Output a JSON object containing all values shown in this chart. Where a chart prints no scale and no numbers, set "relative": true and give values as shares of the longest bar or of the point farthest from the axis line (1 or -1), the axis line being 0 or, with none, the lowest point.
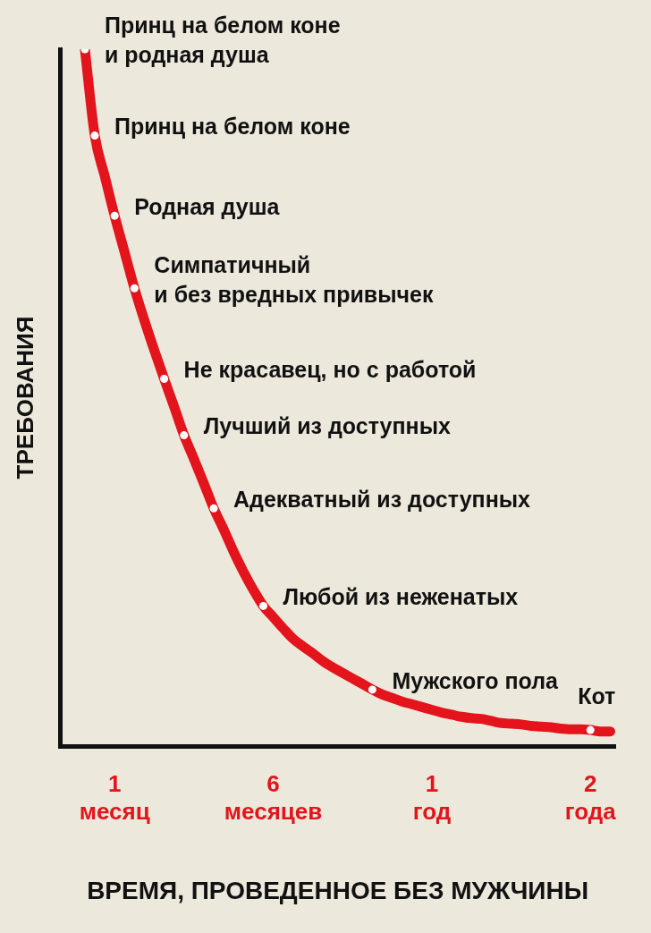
{
  "chart_data": {
    "type": "line",
    "xlabel": "ВРЕМЯ, ПРОВЕДЕННОЕ БЕЗ МУЖЧИНЫ",
    "ylabel": "ТРЕБОВАНИЯ",
    "relative": true,
    "grid": false,
    "legend": false,
    "categories": [
      null,
      null,
      null,
      null,
      null,
      "1 месяц",
      null,
      null,
      null,
      null,
      null,
      null,
      null,
      null,
      null,
      null,
      null,
      null,
      null,
      null,
      null,
      "6 месяцев",
      null,
      null,
      null,
      null,
      null,
      null,
      null,
      null,
      null,
      null,
      null,
      null,
      null,
      null,
      null,
      "1 год",
      null,
      null,
      null,
      null,
      null,
      null,
      null,
      null,
      null,
      null,
      null,
      null,
      null,
      null,
      null,
      "2 года",
      null,
      null
    ],
    "series": [
      {
        "color": "#e3141b",
        "marker": "none",
        "values": [
          null,
          null,
          1.0,
          0.876,
          0.818,
          0.761,
          0.709,
          0.657,
          0.611,
          0.568,
          0.527,
          0.487,
          0.446,
          0.412,
          0.377,
          0.341,
          0.311,
          0.279,
          0.25,
          0.224,
          0.201,
          0.185,
          0.169,
          0.154,
          0.143,
          0.133,
          0.122,
          0.113,
          0.105,
          0.097,
          0.089,
          0.081,
          0.074,
          0.069,
          0.064,
          0.06,
          0.056,
          0.052,
          0.048,
          0.045,
          0.042,
          0.04,
          0.039,
          0.036,
          0.033,
          0.032,
          0.031,
          0.029,
          0.028,
          0.027,
          0.025,
          0.024,
          0.024,
          0.023,
          0.021,
          0.021
        ]
      },
      {
        "type": "scatter",
        "color": "#ffffff",
        "marker": "circle",
        "values": [
          null,
          null,
          1.0,
          0.876,
          null,
          0.761,
          null,
          0.657,
          null,
          null,
          0.527,
          null,
          0.446,
          null,
          null,
          0.341,
          null,
          null,
          null,
          null,
          0.201,
          null,
          null,
          null,
          null,
          null,
          null,
          null,
          null,
          null,
          null,
          0.081,
          null,
          null,
          null,
          null,
          null,
          null,
          null,
          null,
          null,
          null,
          null,
          null,
          null,
          null,
          null,
          null,
          null,
          null,
          null,
          null,
          null,
          0.023,
          null,
          null
        ]
      }
    ],
    "annotations": [
      "Принц на белом коне\nи родная душа",
      "Принц на белом коне",
      "Родная душа",
      "Симпатичный\nи без вредных привычек",
      "Не красавец, но с работой",
      "Лучший из доступных",
      "Адекватный из доступных",
      "Любой из неженатых",
      "Мужского пола",
      "Кот"
    ]
  }
}
